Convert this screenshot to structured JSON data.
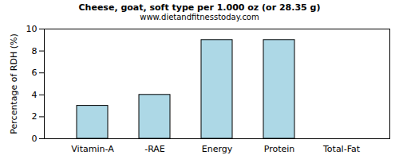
{
  "chart_data": {
    "type": "bar",
    "title": "Cheese, goat, soft type per 1.000 oz (or 28.35 g)",
    "subtitle": "www.dietandfitnesstoday.com",
    "y_label": "Percentage of RDH (%)",
    "categories": [
      "Vitamin-A",
      "-RAE",
      "Energy",
      "Protein",
      "Total-Fat"
    ],
    "values": [
      3,
      4,
      9,
      9,
      0
    ],
    "color": "#add8e6",
    "ylim": [
      0,
      10
    ],
    "yticks": [
      0,
      2,
      4,
      6,
      8,
      10
    ],
    "grid": false
  }
}
